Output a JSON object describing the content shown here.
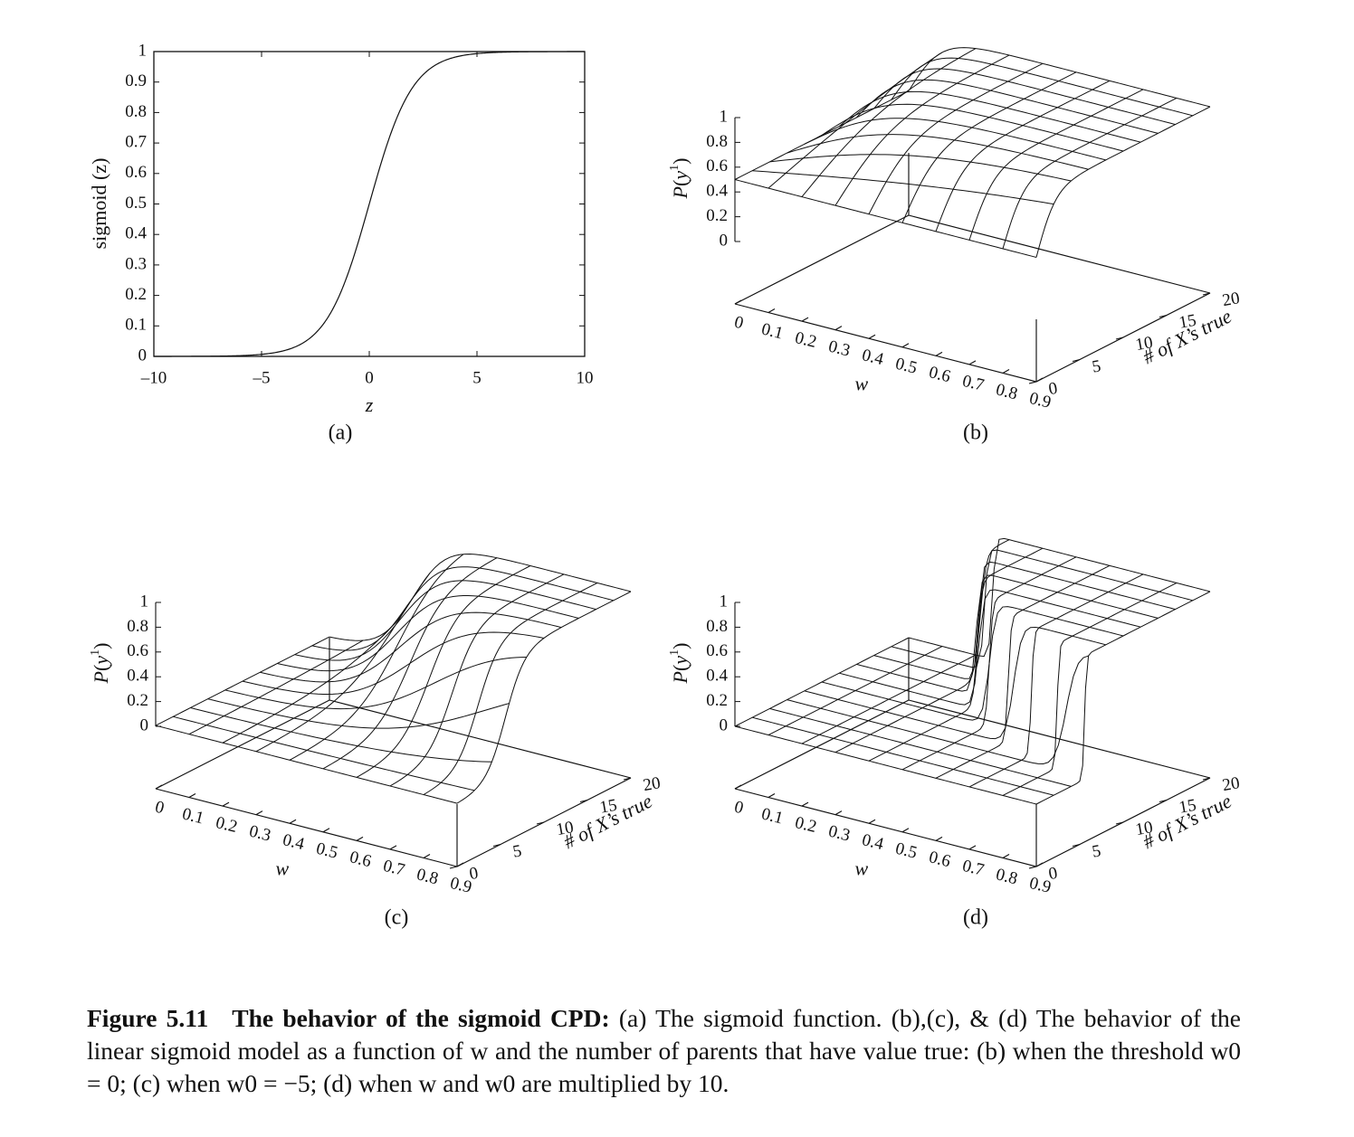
{
  "figure": {
    "panels": [
      {
        "id": "a",
        "label": "(a)",
        "chart_data": {
          "type": "line",
          "title": "",
          "xlabel": "z",
          "ylabel": "sigmoid (z)",
          "xlim": [
            -10,
            10
          ],
          "ylim": [
            0,
            1
          ],
          "xticks": [
            "–10",
            "–5",
            "0",
            "5",
            "10"
          ],
          "yticks": [
            "0",
            "0.1",
            "0.2",
            "0.3",
            "0.4",
            "0.5",
            "0.6",
            "0.7",
            "0.8",
            "0.9",
            "1"
          ],
          "function": "sigmoid(z) = 1 / (1 + e^(-z))",
          "x": [
            -10,
            -8,
            -6,
            -5,
            -4,
            -3,
            -2,
            -1,
            0,
            1,
            2,
            3,
            4,
            5,
            6,
            8,
            10
          ],
          "y": [
            5e-05,
            0.0003,
            0.0025,
            0.0067,
            0.018,
            0.047,
            0.119,
            0.269,
            0.5,
            0.731,
            0.881,
            0.953,
            0.982,
            0.993,
            0.9975,
            0.9997,
            0.99995
          ]
        }
      },
      {
        "id": "b",
        "label": "(b)",
        "chart_data": {
          "type": "surface",
          "zlabel": "P(y¹)",
          "xlabel": "w",
          "ylabel": "# of X’s true",
          "xticks": [
            "0",
            "0.1",
            "0.2",
            "0.3",
            "0.4",
            "0.5",
            "0.6",
            "0.7",
            "0.8",
            "0.9"
          ],
          "yticks": [
            "0",
            "5",
            "10",
            "15",
            "20"
          ],
          "zticks": [
            "0",
            "0.2",
            "0.4",
            "0.6",
            "0.8",
            "1"
          ],
          "xlim": [
            0,
            0.9
          ],
          "ylim": [
            0,
            20
          ],
          "zlim": [
            0,
            1
          ],
          "function": "P(y1) = sigmoid(w * n + w0)",
          "w_scale": 1,
          "w0": 0
        }
      },
      {
        "id": "c",
        "label": "(c)",
        "chart_data": {
          "type": "surface",
          "zlabel": "P(y¹)",
          "xlabel": "w",
          "ylabel": "# of X’s true",
          "xticks": [
            "0",
            "0.1",
            "0.2",
            "0.3",
            "0.4",
            "0.5",
            "0.6",
            "0.7",
            "0.8",
            "0.9"
          ],
          "yticks": [
            "0",
            "5",
            "10",
            "15",
            "20"
          ],
          "zticks": [
            "0",
            "0.2",
            "0.4",
            "0.6",
            "0.8",
            "1"
          ],
          "xlim": [
            0,
            0.9
          ],
          "ylim": [
            0,
            20
          ],
          "zlim": [
            0,
            1
          ],
          "function": "P(y1) = sigmoid(w * n + w0)",
          "w_scale": 1,
          "w0": -5
        }
      },
      {
        "id": "d",
        "label": "(d)",
        "chart_data": {
          "type": "surface",
          "zlabel": "P(y¹)",
          "xlabel": "w",
          "ylabel": "# of X’s true",
          "xticks": [
            "0",
            "0.1",
            "0.2",
            "0.3",
            "0.4",
            "0.5",
            "0.6",
            "0.7",
            "0.8",
            "0.9"
          ],
          "yticks": [
            "0",
            "5",
            "10",
            "15",
            "20"
          ],
          "zticks": [
            "0",
            "0.2",
            "0.4",
            "0.6",
            "0.8",
            "1"
          ],
          "xlim": [
            0,
            0.9
          ],
          "ylim": [
            0,
            20
          ],
          "zlim": [
            0,
            1
          ],
          "function": "P(y1) = sigmoid(10 * (w * n + w0))",
          "w_scale": 10,
          "w0": -5
        }
      }
    ]
  },
  "caption": {
    "lead": "Figure 5.11",
    "title": "The behavior of the sigmoid CPD:",
    "body": "(a) The sigmoid function. (b),(c), & (d) The behavior of the linear sigmoid model as a function of w and the number of parents that have value true: (b) when the threshold w0 = 0; (c) when w0 = −5; (d) when w and w0 are multiplied by 10."
  }
}
